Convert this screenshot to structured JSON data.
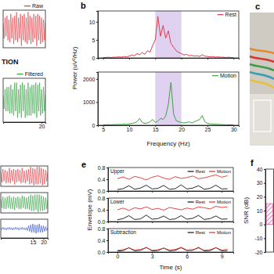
{
  "chart_data": [
    {
      "type": "line",
      "legend": "upper right",
      "tick_labels": false,
      "annotations": [
        "TION"
      ],
      "x": [
        0,
        0.5,
        1,
        1.5,
        2,
        2.5,
        3,
        3.5,
        4,
        4.5,
        5,
        5.5,
        6,
        6.5,
        7,
        7.5,
        8,
        8.5,
        9,
        9.5,
        10,
        10.5,
        11,
        11.5,
        12,
        12.5,
        13,
        13.5,
        14,
        14.5,
        15,
        15.5,
        16,
        16.5,
        17,
        17.5,
        18,
        18.5,
        19,
        19.5,
        20,
        20.5,
        21,
        21.5,
        22
      ],
      "xlim": [
        0,
        22
      ],
      "ylim": [
        -1,
        1
      ],
      "series": [
        {
          "name": "Raw",
          "color": "#e3343a",
          "values": [
            0.3,
            -0.5,
            0.6,
            -0.4,
            0.7,
            -0.6,
            0.5,
            -0.7,
            0.8,
            -0.5,
            0.6,
            -0.8,
            0.7,
            -0.6,
            0.9,
            -0.7,
            0.6,
            -0.5,
            0.8,
            -0.9,
            0.7,
            -0.6,
            0.8,
            -0.7,
            0.6,
            -0.8,
            0.9,
            -0.6,
            0.7,
            -0.8,
            0.6,
            -0.7,
            0.8,
            -0.5,
            0.7,
            -0.9,
            0.8,
            -0.6,
            0.7,
            -0.8,
            0.6,
            -0.7,
            0.5,
            -0.6,
            0.4
          ]
        }
      ]
    },
    {
      "type": "line",
      "legend": "upper right",
      "tick_labels": "x",
      "x": [
        0,
        0.5,
        1,
        1.5,
        2,
        2.5,
        3,
        3.5,
        4,
        4.5,
        5,
        5.5,
        6,
        6.5,
        7,
        7.5,
        8,
        8.5,
        9,
        9.5,
        10,
        10.5,
        11,
        11.5,
        12,
        12.5,
        13,
        13.5,
        14,
        14.5,
        15,
        15.5,
        16,
        16.5,
        17,
        17.5,
        18,
        18.5,
        19,
        19.5,
        20,
        20.5,
        21,
        21.5,
        22
      ],
      "xlim": [
        0,
        22
      ],
      "xticks": [
        20
      ],
      "ylim": [
        -1,
        1
      ],
      "series": [
        {
          "name": "Filtered",
          "color": "#2e9e3a",
          "values": [
            0.2,
            -0.4,
            0.5,
            -0.5,
            0.6,
            -0.5,
            0.6,
            -0.6,
            0.7,
            -0.6,
            0.5,
            -0.7,
            0.8,
            -0.5,
            0.8,
            -0.8,
            0.5,
            -0.6,
            0.7,
            -0.8,
            0.8,
            -0.5,
            0.7,
            -0.8,
            0.5,
            -0.7,
            0.8,
            -0.7,
            0.6,
            -0.7,
            0.7,
            -0.6,
            0.7,
            -0.6,
            0.8,
            -0.8,
            0.7,
            -0.5,
            0.8,
            -0.7,
            0.5,
            -0.6,
            0.6,
            -0.5,
            0.3
          ]
        }
      ]
    },
    {
      "type": "line",
      "panel_label": "b",
      "ylabel": "Power (uV²/Hz)",
      "legend": "upper right",
      "tick_labels": "y",
      "x": [
        5,
        5.5,
        6,
        6.5,
        7,
        7.5,
        8,
        8.5,
        9,
        9.5,
        10,
        10.5,
        11,
        11.5,
        12,
        12.5,
        13,
        13.5,
        14,
        14.5,
        15,
        15.5,
        16,
        16.5,
        17,
        17.5,
        18,
        18.5,
        19,
        19.5,
        20,
        20.5,
        21,
        21.5,
        22,
        22.5,
        23,
        23.5,
        24,
        24.5,
        25,
        25.5,
        26,
        26.5,
        27,
        27.5,
        28,
        28.5,
        29,
        29.5,
        30
      ],
      "xlim": [
        4,
        31
      ],
      "xticks": [
        5,
        10,
        15,
        20,
        25,
        30
      ],
      "ylim": [
        0,
        13
      ],
      "yticks": [
        0,
        5,
        10
      ],
      "highlight_range": [
        15,
        20
      ],
      "series": [
        {
          "name": "Rest",
          "color": "#e03b4a",
          "values": [
            0.1,
            0.1,
            0.2,
            0.1,
            0.2,
            0.2,
            0.3,
            0.2,
            0.4,
            0.3,
            0.5,
            0.8,
            0.6,
            1.2,
            0.9,
            1.5,
            1.0,
            2.0,
            1.6,
            3.5,
            5.0,
            11.5,
            6.0,
            9.0,
            5.5,
            7.5,
            4.0,
            3.0,
            2.0,
            1.5,
            1.2,
            0.8,
            1.0,
            0.6,
            0.7,
            0.5,
            0.6,
            0.4,
            0.9,
            0.5,
            0.4,
            0.3,
            0.4,
            0.2,
            0.3,
            0.2,
            0.2,
            0.1,
            0.2,
            0.1,
            0.1
          ]
        }
      ]
    },
    {
      "type": "line",
      "xlabel": "Frequency (Hz)",
      "legend": "upper right",
      "x": [
        5,
        5.5,
        6,
        6.5,
        7,
        7.5,
        8,
        8.5,
        9,
        9.5,
        10,
        10.5,
        11,
        11.5,
        12,
        12.5,
        13,
        13.5,
        14,
        14.5,
        15,
        15.5,
        16,
        16.5,
        17,
        17.5,
        18,
        18.5,
        19,
        19.5,
        20,
        20.5,
        21,
        21.5,
        22,
        22.5,
        23,
        23.5,
        24,
        24.5,
        25,
        25.5,
        26,
        26.5,
        27,
        27.5,
        28,
        28.5,
        29,
        29.5,
        30
      ],
      "xlim": [
        4,
        31
      ],
      "xticks": [
        5,
        10,
        15,
        20,
        25,
        30
      ],
      "ylim": [
        0,
        2300
      ],
      "yticks": [
        0,
        1000,
        2000
      ],
      "highlight_range": [
        15,
        20
      ],
      "series": [
        {
          "name": "Motion",
          "color": "#3aa33f",
          "values": [
            20,
            20,
            30,
            20,
            30,
            30,
            40,
            30,
            50,
            40,
            60,
            80,
            100,
            150,
            300,
            120,
            80,
            100,
            150,
            250,
            120,
            180,
            300,
            250,
            400,
            900,
            1850,
            500,
            200,
            150,
            120,
            100,
            120,
            150,
            100,
            150,
            200,
            250,
            420,
            150,
            80,
            60,
            50,
            40,
            40,
            30,
            30,
            20,
            20,
            20,
            20
          ]
        }
      ]
    },
    {
      "type": "line",
      "tick_labels": false,
      "x": [
        0,
        0.5,
        1,
        1.5,
        2,
        2.5,
        3,
        3.5,
        4,
        4.5,
        5,
        5.5,
        6,
        6.5,
        7,
        7.5,
        8,
        8.5,
        9,
        9.5,
        10,
        10.5,
        11,
        11.5,
        12,
        12.5,
        13,
        13.5,
        14,
        14.5,
        15,
        15.5,
        16,
        16.5,
        17,
        17.5,
        18,
        18.5,
        19,
        19.5,
        20,
        20.5,
        21,
        21.5,
        22
      ],
      "xlim": [
        0,
        22
      ],
      "ylim": [
        -1,
        1
      ],
      "series": [
        {
          "color": "#e3343a",
          "values": [
            0.5,
            -0.6,
            0.7,
            -0.5,
            0.6,
            -0.7,
            0.5,
            -0.6,
            0.8,
            -0.7,
            0.6,
            -0.5,
            0.7,
            -0.8,
            0.6,
            -0.6,
            0.7,
            -0.5,
            0.6,
            -0.7,
            0.8,
            -0.6,
            0.5,
            -0.7,
            0.6,
            -0.5,
            0.7,
            -0.8,
            0.9,
            -0.7,
            0.8,
            -0.9,
            0.7,
            -0.8,
            0.9,
            -0.8,
            0.9,
            -0.7,
            0.8,
            -0.9,
            0.7,
            -0.8,
            0.6,
            -0.5,
            0.4
          ]
        }
      ]
    },
    {
      "type": "line",
      "tick_labels": false,
      "x": [
        0,
        0.5,
        1,
        1.5,
        2,
        2.5,
        3,
        3.5,
        4,
        4.5,
        5,
        5.5,
        6,
        6.5,
        7,
        7.5,
        8,
        8.5,
        9,
        9.5,
        10,
        10.5,
        11,
        11.5,
        12,
        12.5,
        13,
        13.5,
        14,
        14.5,
        15,
        15.5,
        16,
        16.5,
        17,
        17.5,
        18,
        18.5,
        19,
        19.5,
        20,
        20.5,
        21,
        21.5,
        22
      ],
      "xlim": [
        0,
        22
      ],
      "ylim": [
        -1,
        1
      ],
      "series": [
        {
          "color": "#2e9e3a",
          "values": [
            0.4,
            -0.5,
            0.6,
            -0.6,
            0.5,
            -0.6,
            0.6,
            -0.5,
            0.7,
            -0.6,
            0.5,
            -0.6,
            0.6,
            -0.7,
            0.5,
            -0.5,
            0.6,
            -0.6,
            0.5,
            -0.6,
            0.7,
            -0.5,
            0.6,
            -0.6,
            0.5,
            -0.6,
            0.6,
            -0.7,
            0.8,
            -0.8,
            0.7,
            -0.8,
            0.8,
            -0.7,
            0.8,
            -0.9,
            0.8,
            -0.8,
            0.7,
            -0.8,
            0.6,
            -0.7,
            0.5,
            -0.6,
            0.3
          ]
        }
      ]
    },
    {
      "type": "line",
      "tick_labels": "x",
      "x": [
        0,
        0.5,
        1,
        1.5,
        2,
        2.5,
        3,
        3.5,
        4,
        4.5,
        5,
        5.5,
        6,
        6.5,
        7,
        7.5,
        8,
        8.5,
        9,
        9.5,
        10,
        10.5,
        11,
        11.5,
        12,
        12.5,
        13,
        13.5,
        14,
        14.5,
        15,
        15.5,
        16,
        16.5,
        17,
        17.5,
        18,
        18.5,
        19,
        19.5,
        20,
        20.5,
        21,
        21.5,
        22
      ],
      "xlim": [
        0,
        22
      ],
      "xticks": [
        15,
        20
      ],
      "ylim": [
        -1,
        1
      ],
      "series": [
        {
          "color": "#2647d8",
          "values": [
            0.1,
            -0.1,
            0.15,
            -0.1,
            0.1,
            -0.15,
            0.1,
            -0.1,
            0.15,
            -0.1,
            0.1,
            -0.15,
            0.1,
            -0.1,
            0.15,
            -0.1,
            0.1,
            -0.15,
            0.1,
            -0.1,
            0.15,
            -0.1,
            0.1,
            -0.15,
            0.1,
            -0.2,
            0.3,
            -0.3,
            0.4,
            -0.4,
            0.5,
            -0.4,
            0.4,
            -0.5,
            0.4,
            -0.4,
            0.5,
            -0.4,
            0.3,
            -0.4,
            0.3,
            -0.3,
            0.2,
            -0.2,
            0.1
          ]
        }
      ]
    },
    {
      "type": "line",
      "panel_label": "e",
      "title": "Upper",
      "ylabel": "Envelope (mV)",
      "legend": "upper right",
      "tick_labels": "y",
      "x": [
        0,
        0.5,
        1,
        1.5,
        2,
        2.5,
        3,
        3.5,
        4,
        4.5,
        5,
        5.5,
        6,
        6.5,
        7,
        7.5,
        8,
        8.5,
        9,
        9.5
      ],
      "xlim": [
        -0.8,
        10
      ],
      "xticks": [
        0,
        3,
        6,
        9
      ],
      "ylim": [
        0,
        0.8
      ],
      "yticks": [
        {
          "value": 0,
          "label": "0.0"
        },
        0.4,
        0.8
      ],
      "series": [
        {
          "name": "Rest",
          "color": "#111111",
          "values": [
            0.05,
            0.08,
            0.18,
            0.06,
            0.1,
            0.2,
            0.07,
            0.09,
            0.19,
            0.06,
            0.08,
            0.21,
            0.07,
            0.1,
            0.18,
            0.06,
            0.09,
            0.2,
            0.07,
            0.08
          ]
        },
        {
          "name": "Motion",
          "color": "#e0322f",
          "values": [
            0.42,
            0.48,
            0.4,
            0.5,
            0.45,
            0.38,
            0.47,
            0.52,
            0.44,
            0.4,
            0.49,
            0.43,
            0.46,
            0.51,
            0.42,
            0.45,
            0.5,
            0.55,
            0.47,
            0.52
          ]
        }
      ]
    },
    {
      "type": "line",
      "title": "Lower",
      "legend": "upper right",
      "tick_labels": "y",
      "x": [
        0,
        0.5,
        1,
        1.5,
        2,
        2.5,
        3,
        3.5,
        4,
        4.5,
        5,
        5.5,
        6,
        6.5,
        7,
        7.5,
        8,
        8.5,
        9,
        9.5
      ],
      "xlim": [
        -0.8,
        10
      ],
      "xticks": [
        0,
        3,
        6,
        9
      ],
      "ylim": [
        0,
        0.8
      ],
      "yticks": [
        {
          "value": 0,
          "label": "0.0"
        },
        0.4,
        0.8
      ],
      "series": [
        {
          "name": "Rest",
          "color": "#111111",
          "values": [
            0.06,
            0.1,
            0.2,
            0.07,
            0.09,
            0.22,
            0.08,
            0.1,
            0.19,
            0.07,
            0.09,
            0.2,
            0.08,
            0.11,
            0.21,
            0.07,
            0.1,
            0.19,
            0.08,
            0.09
          ]
        },
        {
          "name": "Motion",
          "color": "#e0322f",
          "values": [
            0.4,
            0.46,
            0.38,
            0.47,
            0.43,
            0.5,
            0.41,
            0.45,
            0.39,
            0.48,
            0.44,
            0.4,
            0.46,
            0.42,
            0.5,
            0.47,
            0.43,
            0.52,
            0.48,
            0.5
          ]
        }
      ]
    },
    {
      "type": "line",
      "title": "Subtraction",
      "xlabel": "Time (s)",
      "legend": "upper right",
      "x": [
        0,
        0.5,
        1,
        1.5,
        2,
        2.5,
        3,
        3.5,
        4,
        4.5,
        5,
        5.5,
        6,
        6.5,
        7,
        7.5,
        8,
        8.5,
        9,
        9.5
      ],
      "xlim": [
        -0.8,
        10
      ],
      "xticks": [
        0,
        3,
        6,
        9
      ],
      "ylim": [
        0,
        0.8
      ],
      "yticks": [
        {
          "value": 0,
          "label": "0.0"
        },
        0.4,
        0.8
      ],
      "series": [
        {
          "name": "Rest",
          "color": "#111111",
          "values": [
            0.03,
            0.05,
            0.15,
            0.04,
            0.06,
            0.16,
            0.04,
            0.05,
            0.14,
            0.04,
            0.06,
            0.15,
            0.05,
            0.06,
            0.16,
            0.04,
            0.05,
            0.15,
            0.04,
            0.05
          ]
        },
        {
          "name": "Motion",
          "color": "#e0322f",
          "values": [
            0.06,
            0.08,
            0.14,
            0.07,
            0.09,
            0.15,
            0.06,
            0.08,
            0.13,
            0.07,
            0.09,
            0.16,
            0.07,
            0.08,
            0.14,
            0.06,
            0.08,
            0.15,
            0.07,
            0.09
          ]
        }
      ]
    },
    {
      "type": "bar",
      "panel_label": "f",
      "ylabel": "SNR (dB)",
      "tick_labels": "y",
      "categories": [
        null
      ],
      "values": [
        15
      ],
      "color": "#d4609f",
      "ylim": [
        -20,
        40
      ],
      "yticks": [
        -20,
        -10,
        0,
        10,
        20,
        30,
        40
      ]
    }
  ],
  "photo": {
    "panel_label": "c"
  }
}
